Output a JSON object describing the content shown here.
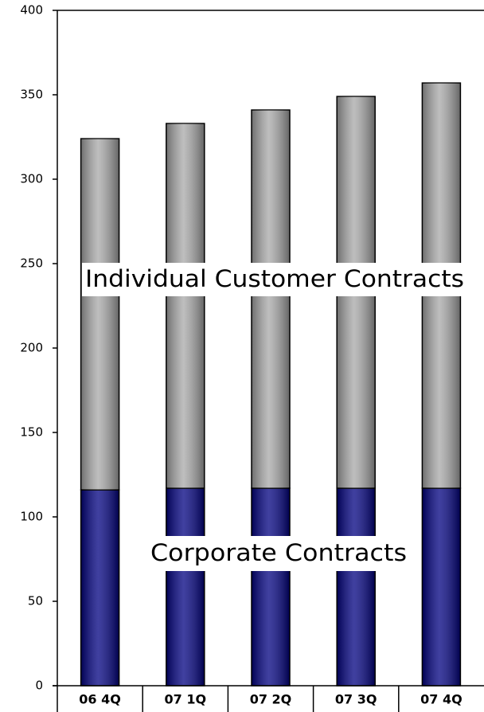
{
  "chart_data": {
    "type": "stacked-bar",
    "categories": [
      "06 4Q",
      "07 1Q",
      "07 2Q",
      "07 3Q",
      "07 4Q"
    ],
    "series": [
      {
        "name": "Corporate Contracts",
        "color": "#000080",
        "values": [
          116,
          117,
          117,
          117,
          117
        ]
      },
      {
        "name": "Individual Customer Contracts",
        "color": "#a8a8a8",
        "values": [
          208,
          216,
          224,
          232,
          240
        ]
      }
    ],
    "ylim": [
      0,
      400
    ],
    "yticks": [
      0,
      50,
      100,
      150,
      200,
      250,
      300,
      350,
      400
    ]
  }
}
